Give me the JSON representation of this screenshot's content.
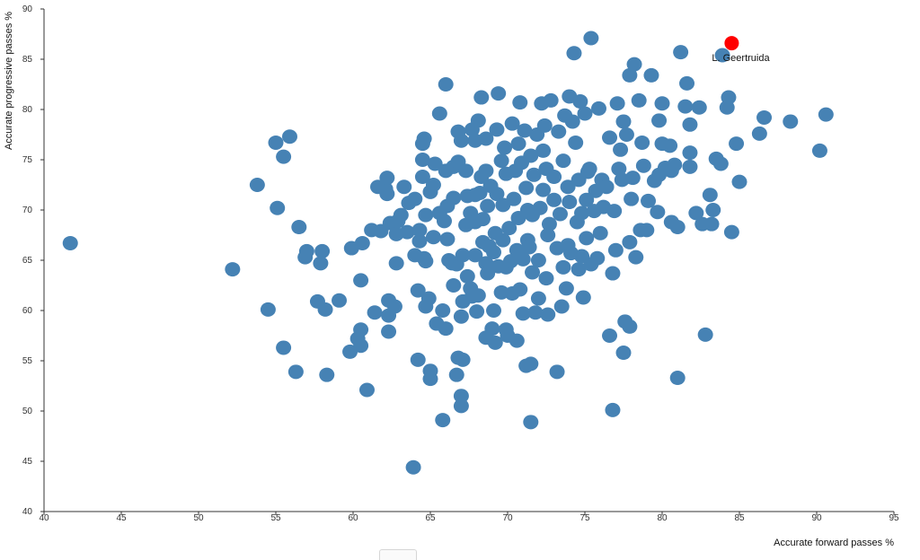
{
  "chart_data": {
    "type": "scatter",
    "title": "",
    "xlabel": "Accurate forward passes %",
    "ylabel": "Accurate progressive passes %",
    "xlim": [
      40,
      95
    ],
    "ylim": [
      40,
      90
    ],
    "xticks": [
      40,
      45,
      50,
      55,
      60,
      65,
      70,
      75,
      80,
      85,
      90,
      95
    ],
    "yticks": [
      40,
      45,
      50,
      55,
      60,
      65,
      70,
      75,
      80,
      85,
      90
    ],
    "grid": false,
    "highlight": {
      "label": "L. Geertruida",
      "x": 84.5,
      "y": 86.6,
      "color": "#ff0000"
    },
    "series_color": "#4682b4",
    "points": [
      [
        41.7,
        66.7
      ],
      [
        52.2,
        64.1
      ],
      [
        53.8,
        72.5
      ],
      [
        54.5,
        60.1
      ],
      [
        55.1,
        70.2
      ],
      [
        55.5,
        56.3
      ],
      [
        55.5,
        75.3
      ],
      [
        55.9,
        77.3
      ],
      [
        55.0,
        76.7
      ],
      [
        56.3,
        53.9
      ],
      [
        56.5,
        68.3
      ],
      [
        56.9,
        65.3
      ],
      [
        57.0,
        65.9
      ],
      [
        57.7,
        60.9
      ],
      [
        57.9,
        64.7
      ],
      [
        58.0,
        65.9
      ],
      [
        58.2,
        60.1
      ],
      [
        58.3,
        53.6
      ],
      [
        59.1,
        61.0
      ],
      [
        59.8,
        55.9
      ],
      [
        59.9,
        66.2
      ],
      [
        60.3,
        57.2
      ],
      [
        60.5,
        56.5
      ],
      [
        60.5,
        58.1
      ],
      [
        60.6,
        66.7
      ],
      [
        60.5,
        63.0
      ],
      [
        60.9,
        52.1
      ],
      [
        61.2,
        68.0
      ],
      [
        61.4,
        59.8
      ],
      [
        61.8,
        67.9
      ],
      [
        61.6,
        72.3
      ],
      [
        62.1,
        72.1
      ],
      [
        62.2,
        71.6
      ],
      [
        62.2,
        73.2
      ],
      [
        62.3,
        61.0
      ],
      [
        62.3,
        59.5
      ],
      [
        62.3,
        57.9
      ],
      [
        62.4,
        68.7
      ],
      [
        62.7,
        60.4
      ],
      [
        62.8,
        67.6
      ],
      [
        62.9,
        68.9
      ],
      [
        62.8,
        64.7
      ],
      [
        63.1,
        69.5
      ],
      [
        63.3,
        72.3
      ],
      [
        63.5,
        67.8
      ],
      [
        63.6,
        70.7
      ],
      [
        63.9,
        44.4
      ],
      [
        64.0,
        71.1
      ],
      [
        64.0,
        65.5
      ],
      [
        64.2,
        55.1
      ],
      [
        64.2,
        62.0
      ],
      [
        64.3,
        66.9
      ],
      [
        64.3,
        68.0
      ],
      [
        64.5,
        73.3
      ],
      [
        64.5,
        75.0
      ],
      [
        64.5,
        76.6
      ],
      [
        64.6,
        77.1
      ],
      [
        64.6,
        65.2
      ],
      [
        64.7,
        69.5
      ],
      [
        64.7,
        64.9
      ],
      [
        64.7,
        60.4
      ],
      [
        64.9,
        61.2
      ],
      [
        65.0,
        54.0
      ],
      [
        65.0,
        53.2
      ],
      [
        65.0,
        71.8
      ],
      [
        65.2,
        67.3
      ],
      [
        65.2,
        72.5
      ],
      [
        65.3,
        74.6
      ],
      [
        65.4,
        58.7
      ],
      [
        65.6,
        69.7
      ],
      [
        65.6,
        79.6
      ],
      [
        65.8,
        60.0
      ],
      [
        65.8,
        49.1
      ],
      [
        65.9,
        68.9
      ],
      [
        66.0,
        58.2
      ],
      [
        66.0,
        82.5
      ],
      [
        66.0,
        73.9
      ],
      [
        66.1,
        67.1
      ],
      [
        66.1,
        70.4
      ],
      [
        66.2,
        65.0
      ],
      [
        66.4,
        64.7
      ],
      [
        66.5,
        71.2
      ],
      [
        66.5,
        62.5
      ],
      [
        66.5,
        74.3
      ],
      [
        66.7,
        64.6
      ],
      [
        66.7,
        53.6
      ],
      [
        66.8,
        55.3
      ],
      [
        66.8,
        74.8
      ],
      [
        66.8,
        77.8
      ],
      [
        67.0,
        76.9
      ],
      [
        67.0,
        50.5
      ],
      [
        67.0,
        51.5
      ],
      [
        67.0,
        59.4
      ],
      [
        67.1,
        55.1
      ],
      [
        67.1,
        60.9
      ],
      [
        67.1,
        65.5
      ],
      [
        67.3,
        68.5
      ],
      [
        67.3,
        73.9
      ],
      [
        67.4,
        71.4
      ],
      [
        67.4,
        63.4
      ],
      [
        67.6,
        69.7
      ],
      [
        67.6,
        62.2
      ],
      [
        67.7,
        78.0
      ],
      [
        67.7,
        61.4
      ],
      [
        67.9,
        76.9
      ],
      [
        67.9,
        71.5
      ],
      [
        67.9,
        68.8
      ],
      [
        67.9,
        65.5
      ],
      [
        68.0,
        59.9
      ],
      [
        68.1,
        61.5
      ],
      [
        68.1,
        78.9
      ],
      [
        68.2,
        71.7
      ],
      [
        68.3,
        81.2
      ],
      [
        68.3,
        73.3
      ],
      [
        68.4,
        69.1
      ],
      [
        68.4,
        66.8
      ],
      [
        68.6,
        64.7
      ],
      [
        68.6,
        77.1
      ],
      [
        68.6,
        57.3
      ],
      [
        68.6,
        73.9
      ],
      [
        68.7,
        70.4
      ],
      [
        68.7,
        63.7
      ],
      [
        68.8,
        66.4
      ],
      [
        68.9,
        72.4
      ],
      [
        69.0,
        58.2
      ],
      [
        69.1,
        60.0
      ],
      [
        69.1,
        65.8
      ],
      [
        69.2,
        67.7
      ],
      [
        69.2,
        56.8
      ],
      [
        69.3,
        71.6
      ],
      [
        69.3,
        78.0
      ],
      [
        69.4,
        81.6
      ],
      [
        69.4,
        64.4
      ],
      [
        69.6,
        74.9
      ],
      [
        69.6,
        61.8
      ],
      [
        69.7,
        67.0
      ],
      [
        69.7,
        70.5
      ],
      [
        69.8,
        76.2
      ],
      [
        69.9,
        73.6
      ],
      [
        69.9,
        64.3
      ],
      [
        69.9,
        58.1
      ],
      [
        70.0,
        57.5
      ],
      [
        70.1,
        68.2
      ],
      [
        70.2,
        64.9
      ],
      [
        70.3,
        61.7
      ],
      [
        70.3,
        78.6
      ],
      [
        70.4,
        71.1
      ],
      [
        70.5,
        73.9
      ],
      [
        70.6,
        57.0
      ],
      [
        70.6,
        66.0
      ],
      [
        70.7,
        69.2
      ],
      [
        70.7,
        76.6
      ],
      [
        70.8,
        62.1
      ],
      [
        70.8,
        80.7
      ],
      [
        70.9,
        74.7
      ],
      [
        71.0,
        59.7
      ],
      [
        71.0,
        65.1
      ],
      [
        71.1,
        77.9
      ],
      [
        71.2,
        54.5
      ],
      [
        71.2,
        72.2
      ],
      [
        71.3,
        67.0
      ],
      [
        71.3,
        70.0
      ],
      [
        71.4,
        66.3
      ],
      [
        71.5,
        48.9
      ],
      [
        71.5,
        54.7
      ],
      [
        71.5,
        75.4
      ],
      [
        71.6,
        63.8
      ],
      [
        71.6,
        69.5
      ],
      [
        71.7,
        73.5
      ],
      [
        71.8,
        59.8
      ],
      [
        71.9,
        77.5
      ],
      [
        72.0,
        61.2
      ],
      [
        72.0,
        65.0
      ],
      [
        72.1,
        70.2
      ],
      [
        72.2,
        80.6
      ],
      [
        72.3,
        72.0
      ],
      [
        72.3,
        75.9
      ],
      [
        72.4,
        78.4
      ],
      [
        72.5,
        74.1
      ],
      [
        72.5,
        63.2
      ],
      [
        72.6,
        59.6
      ],
      [
        72.6,
        67.5
      ],
      [
        72.7,
        68.6
      ],
      [
        72.8,
        80.9
      ],
      [
        73.0,
        73.3
      ],
      [
        73.0,
        71.0
      ],
      [
        73.2,
        66.2
      ],
      [
        73.2,
        53.9
      ],
      [
        73.3,
        77.8
      ],
      [
        73.4,
        69.6
      ],
      [
        73.5,
        60.4
      ],
      [
        73.6,
        74.9
      ],
      [
        73.6,
        64.3
      ],
      [
        73.7,
        79.4
      ],
      [
        73.8,
        62.2
      ],
      [
        73.9,
        72.3
      ],
      [
        73.9,
        66.5
      ],
      [
        74.0,
        81.3
      ],
      [
        74.0,
        70.8
      ],
      [
        74.1,
        65.7
      ],
      [
        74.2,
        78.8
      ],
      [
        74.3,
        85.6
      ],
      [
        74.4,
        76.7
      ],
      [
        74.5,
        68.8
      ],
      [
        74.6,
        73.0
      ],
      [
        74.6,
        64.1
      ],
      [
        74.7,
        80.8
      ],
      [
        74.8,
        69.7
      ],
      [
        74.8,
        65.4
      ],
      [
        74.9,
        61.3
      ],
      [
        75.0,
        79.6
      ],
      [
        75.1,
        71.0
      ],
      [
        75.1,
        67.2
      ],
      [
        75.2,
        73.8
      ],
      [
        75.3,
        74.1
      ],
      [
        75.4,
        64.6
      ],
      [
        75.4,
        87.1
      ],
      [
        75.6,
        69.9
      ],
      [
        75.7,
        71.9
      ],
      [
        75.8,
        65.2
      ],
      [
        75.9,
        80.1
      ],
      [
        76.0,
        67.7
      ],
      [
        76.1,
        73.0
      ],
      [
        76.2,
        70.3
      ],
      [
        76.4,
        72.3
      ],
      [
        76.6,
        77.2
      ],
      [
        76.6,
        57.5
      ],
      [
        76.8,
        63.7
      ],
      [
        76.8,
        50.1
      ],
      [
        76.9,
        69.9
      ],
      [
        77.0,
        66.0
      ],
      [
        77.1,
        80.6
      ],
      [
        77.2,
        74.1
      ],
      [
        77.3,
        76.0
      ],
      [
        77.4,
        73.0
      ],
      [
        77.5,
        78.8
      ],
      [
        77.5,
        55.8
      ],
      [
        77.6,
        58.9
      ],
      [
        77.7,
        77.5
      ],
      [
        77.9,
        66.8
      ],
      [
        77.9,
        83.4
      ],
      [
        77.9,
        58.4
      ],
      [
        78.0,
        71.1
      ],
      [
        78.1,
        73.2
      ],
      [
        78.2,
        84.5
      ],
      [
        78.3,
        65.3
      ],
      [
        78.5,
        80.9
      ],
      [
        78.6,
        68.0
      ],
      [
        78.7,
        76.7
      ],
      [
        78.8,
        74.4
      ],
      [
        79.0,
        68.0
      ],
      [
        79.1,
        70.9
      ],
      [
        79.3,
        83.4
      ],
      [
        79.5,
        72.9
      ],
      [
        79.7,
        69.8
      ],
      [
        79.8,
        73.5
      ],
      [
        79.8,
        78.9
      ],
      [
        80.0,
        76.6
      ],
      [
        80.0,
        80.6
      ],
      [
        80.2,
        74.2
      ],
      [
        80.5,
        76.4
      ],
      [
        80.6,
        73.9
      ],
      [
        80.6,
        68.8
      ],
      [
        80.8,
        74.5
      ],
      [
        81.0,
        68.3
      ],
      [
        81.0,
        53.3
      ],
      [
        81.2,
        85.7
      ],
      [
        81.5,
        80.3
      ],
      [
        81.6,
        82.6
      ],
      [
        81.8,
        78.5
      ],
      [
        81.8,
        75.7
      ],
      [
        81.8,
        74.3
      ],
      [
        82.2,
        69.7
      ],
      [
        82.4,
        80.2
      ],
      [
        82.6,
        68.6
      ],
      [
        82.8,
        57.6
      ],
      [
        83.1,
        71.5
      ],
      [
        83.2,
        68.6
      ],
      [
        83.3,
        70.0
      ],
      [
        83.5,
        75.1
      ],
      [
        83.8,
        74.6
      ],
      [
        83.9,
        85.4
      ],
      [
        84.2,
        80.2
      ],
      [
        84.3,
        81.2
      ],
      [
        84.5,
        67.8
      ],
      [
        84.8,
        76.6
      ],
      [
        85.0,
        72.8
      ],
      [
        86.3,
        77.6
      ],
      [
        86.6,
        79.2
      ],
      [
        88.3,
        78.8
      ],
      [
        90.2,
        75.9
      ],
      [
        90.6,
        79.5
      ]
    ]
  }
}
